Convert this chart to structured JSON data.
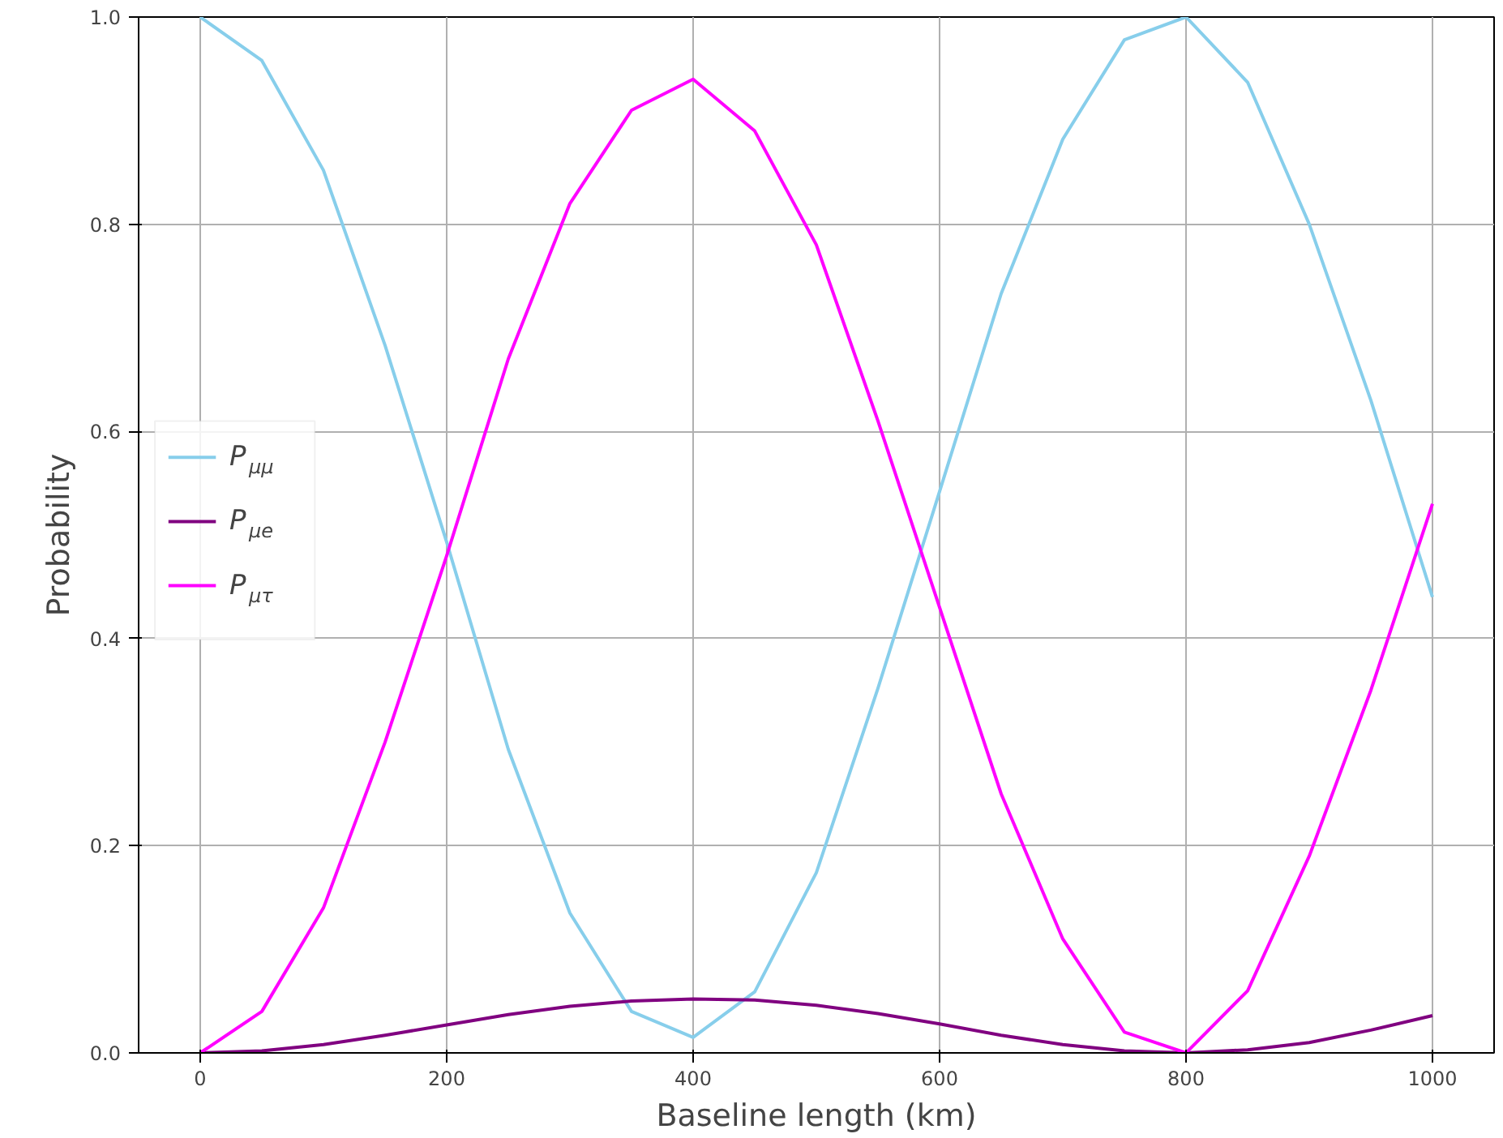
{
  "chart_data": {
    "type": "line",
    "xlabel": "Baseline length (km)",
    "ylabel": "Probability",
    "x": [
      0,
      50,
      100,
      150,
      200,
      250,
      300,
      350,
      400,
      450,
      500,
      550,
      600,
      650,
      700,
      750,
      800,
      850,
      900,
      950,
      1000
    ],
    "series": [
      {
        "name": "P$_{μμ}$",
        "color": "#87ceeb",
        "values": [
          1.0,
          0.958,
          0.852,
          0.683,
          0.493,
          0.293,
          0.135,
          0.04,
          0.015,
          0.059,
          0.174,
          0.352,
          0.542,
          0.733,
          0.882,
          0.978,
          1.0,
          0.937,
          0.8,
          0.63,
          0.44
        ]
      },
      {
        "name": "P$_{μe}$",
        "color": "#800080",
        "values": [
          0,
          0.002,
          0.008,
          0.017,
          0.027,
          0.037,
          0.045,
          0.05,
          0.052,
          0.051,
          0.046,
          0.038,
          0.028,
          0.017,
          0.008,
          0.002,
          0.0,
          0.003,
          0.01,
          0.022,
          0.036
        ]
      },
      {
        "name": "P$_{μτ}$",
        "color": "#ff00ff",
        "values": [
          0,
          0.04,
          0.14,
          0.3,
          0.48,
          0.67,
          0.82,
          0.91,
          0.94,
          0.89,
          0.78,
          0.61,
          0.43,
          0.25,
          0.11,
          0.02,
          0.0,
          0.06,
          0.19,
          0.35,
          0.53
        ]
      }
    ],
    "xlim": [
      -50,
      1050
    ],
    "ylim": [
      0,
      1
    ],
    "xticks": [
      0,
      200,
      400,
      600,
      800,
      1000
    ],
    "yticks": [
      {
        "value": 0,
        "label": "0.0"
      },
      {
        "value": 0.2,
        "label": "0.2"
      },
      {
        "value": 0.4,
        "label": "0.4"
      },
      {
        "value": 0.6,
        "label": "0.6"
      },
      {
        "value": 0.8,
        "label": "0.8"
      },
      {
        "value": 1,
        "label": "1.0"
      }
    ],
    "grid": true,
    "legend": "left",
    "line_style": "solid",
    "marker": "none"
  }
}
